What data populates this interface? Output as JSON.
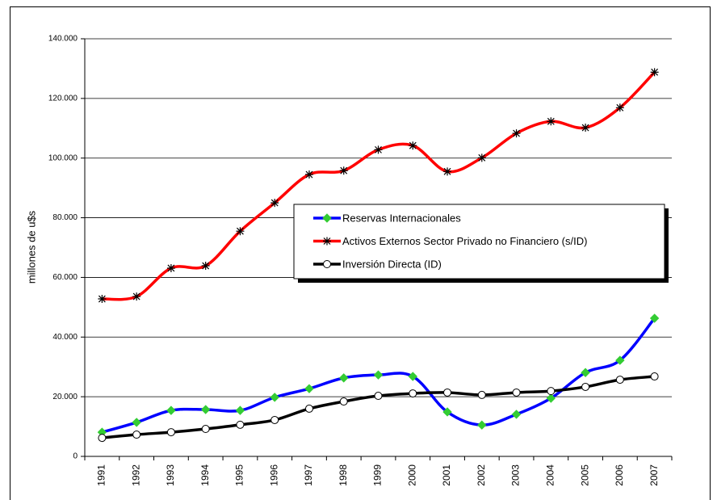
{
  "chart_data": {
    "type": "line",
    "y_label": "millones de u$s",
    "categories": [
      "1991",
      "1992",
      "1993",
      "1994",
      "1995",
      "1996",
      "1997",
      "1998",
      "1999",
      "2000",
      "2001",
      "2002",
      "2003",
      "2004",
      "2005",
      "2006",
      "2007"
    ],
    "series": [
      {
        "name": "Reservas Internacionales",
        "color": "#0000ff",
        "marker": "diamond",
        "marker_color": "#33cc33",
        "values": [
          8100,
          11400,
          15400,
          15700,
          15400,
          19800,
          22700,
          26300,
          27300,
          26800,
          14900,
          10500,
          14100,
          19500,
          28100,
          32200,
          46300
        ]
      },
      {
        "name": "Activos Externos Sector Privado no Financiero (s/ID)",
        "color": "#ff0000",
        "marker": "asterisk",
        "marker_color": "#000000",
        "values": [
          52800,
          53600,
          63100,
          63900,
          75500,
          85000,
          94500,
          95800,
          102800,
          104200,
          95500,
          100100,
          108300,
          112300,
          110200,
          116900,
          128800
        ]
      },
      {
        "name": "Inversión Directa (ID)",
        "color": "#000000",
        "marker": "circle",
        "marker_color": "#ffffff",
        "values": [
          6200,
          7300,
          8100,
          9200,
          10600,
          12200,
          16000,
          18400,
          20300,
          21100,
          21400,
          20600,
          21400,
          21900,
          23300,
          25700,
          26800
        ]
      }
    ],
    "ylim": [
      0,
      140000
    ],
    "yticks": [
      0,
      {
        "value": 20000,
        "label": "20.000"
      },
      {
        "value": 40000,
        "label": "40.000"
      },
      {
        "value": 60000,
        "label": "60.000"
      },
      {
        "value": 80000,
        "label": "80.000"
      },
      {
        "value": 100000,
        "label": "100.000"
      },
      {
        "value": 120000,
        "label": "120.000"
      },
      {
        "value": 140000,
        "label": "140.000"
      }
    ],
    "grid": true,
    "smooth": true
  }
}
